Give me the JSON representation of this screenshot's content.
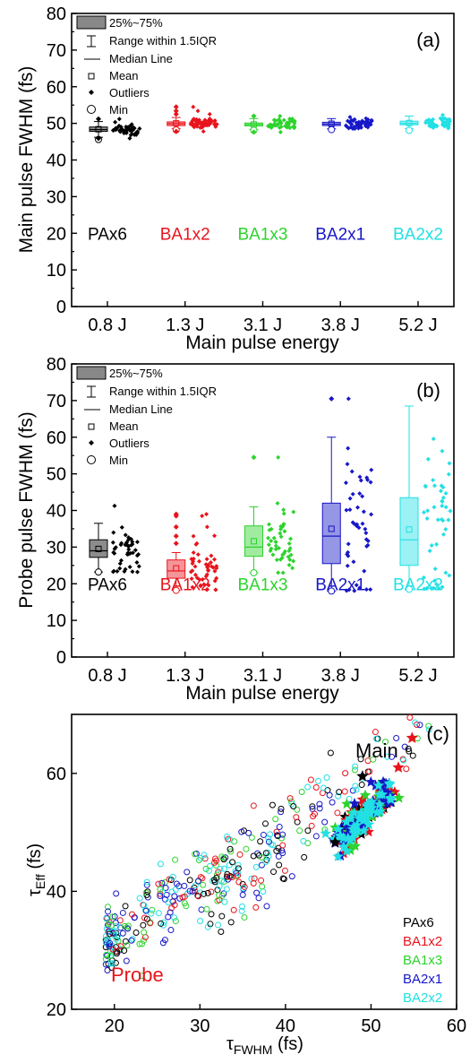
{
  "colors": {
    "PAx6": "#000000",
    "BA1x2": "#e8141c",
    "BA1x3": "#2dd32d",
    "BA2x1": "#1717c8",
    "BA2x2": "#22e0e4"
  },
  "legend_box": {
    "iqr": "25%~75%",
    "range": "Range within 1.5IQR",
    "median": "Median Line",
    "mean": "Mean",
    "outliers": "Outliers",
    "min": "Min"
  },
  "chart_data": [
    {
      "id": "a",
      "type": "box",
      "panel_label": "(a)",
      "ylabel": "Main pulse FWHM (fs)",
      "xlabel": "Main pulse energy",
      "ylim": [
        0,
        80
      ],
      "yticks": [
        0,
        10,
        20,
        30,
        40,
        50,
        60,
        70,
        80
      ],
      "categories": [
        "0.8 J",
        "1.3 J",
        "3.1 J",
        "3.8 J",
        "5.2 J"
      ],
      "group_names": [
        "PAx6",
        "BA1x2",
        "BA1x3",
        "BA2x1",
        "BA2x2"
      ],
      "boxes": [
        {
          "q1": 47.8,
          "median": 48.3,
          "q3": 49.0,
          "mean": 48.4,
          "whisker_low": 46.2,
          "whisker_high": 50.5,
          "min": 45.6,
          "outliers": [
            51.2,
            45.9
          ]
        },
        {
          "q1": 49.4,
          "median": 49.9,
          "q3": 50.4,
          "mean": 50.0,
          "whisker_low": 48.6,
          "whisker_high": 51.6,
          "min": 48.2,
          "outliers": [
            54.5,
            53.4,
            52.5,
            47.8
          ]
        },
        {
          "q1": 49.3,
          "median": 49.7,
          "q3": 50.1,
          "mean": 49.7,
          "whisker_low": 48.3,
          "whisker_high": 51.3,
          "min": 48.1,
          "outliers": [
            52.0,
            47.6
          ]
        },
        {
          "q1": 49.4,
          "median": 49.8,
          "q3": 50.3,
          "mean": 49.9,
          "whisker_low": 48.5,
          "whisker_high": 51.3,
          "min": 48.3,
          "outliers": []
        },
        {
          "q1": 49.6,
          "median": 50.0,
          "q3": 50.6,
          "mean": 50.1,
          "whisker_low": 48.6,
          "whisker_high": 52.0,
          "min": 48.1,
          "outliers": []
        }
      ]
    },
    {
      "id": "b",
      "type": "box",
      "panel_label": "(b)",
      "ylabel": "Probe pulse FWHM (fs)",
      "xlabel": "Main pulse energy",
      "ylim": [
        0,
        80
      ],
      "yticks": [
        0,
        10,
        20,
        30,
        40,
        50,
        60,
        70,
        80
      ],
      "categories": [
        "0.8 J",
        "1.3 J",
        "3.1 J",
        "3.8 J",
        "5.2 J"
      ],
      "group_names": [
        "PAx6",
        "BA1x2",
        "BA1x3",
        "BA2x1",
        "BA2x2"
      ],
      "boxes": [
        {
          "q1": 27.2,
          "median": 29.0,
          "q3": 32.0,
          "mean": 29.5,
          "whisker_low": 23.2,
          "whisker_high": 36.5,
          "min": 23.2,
          "outliers": []
        },
        {
          "q1": 21.5,
          "median": 23.5,
          "q3": 26.5,
          "mean": 24.2,
          "whisker_low": 18.2,
          "whisker_high": 28.5,
          "min": 18.2,
          "outliers": [
            39.0,
            38.5,
            35.5,
            33.0,
            31.0
          ]
        },
        {
          "q1": 27.5,
          "median": 30.0,
          "q3": 35.8,
          "mean": 31.6,
          "whisker_low": 23.0,
          "whisker_high": 41.0,
          "min": 23.0,
          "outliers": [
            54.5
          ]
        },
        {
          "q1": 25.5,
          "median": 33.0,
          "q3": 42.0,
          "mean": 35.0,
          "whisker_low": 18.0,
          "whisker_high": 60.0,
          "min": 18.0,
          "outliers": [
            70.5
          ]
        },
        {
          "q1": 25.0,
          "median": 32.0,
          "q3": 43.5,
          "mean": 34.8,
          "whisker_low": 18.5,
          "whisker_high": 68.5,
          "min": 18.5,
          "outliers": []
        }
      ]
    },
    {
      "id": "c",
      "type": "scatter",
      "panel_label": "(c)",
      "xlabel_main": "τ",
      "xlabel_sub": "FWHM",
      "xlabel_unit": " (fs)",
      "ylabel_main": "τ",
      "ylabel_sub": "Eff",
      "ylabel_unit": " (fs)",
      "xlim": [
        15,
        60
      ],
      "ylim": [
        20,
        70
      ],
      "xticks": [
        20,
        30,
        40,
        50,
        60
      ],
      "yticks": [
        20,
        40,
        60
      ],
      "annotations": {
        "probe": "Probe",
        "main": "Main"
      },
      "legend": [
        "PAx6",
        "BA1x2",
        "BA1x3",
        "BA2x1",
        "BA2x2"
      ]
    }
  ]
}
